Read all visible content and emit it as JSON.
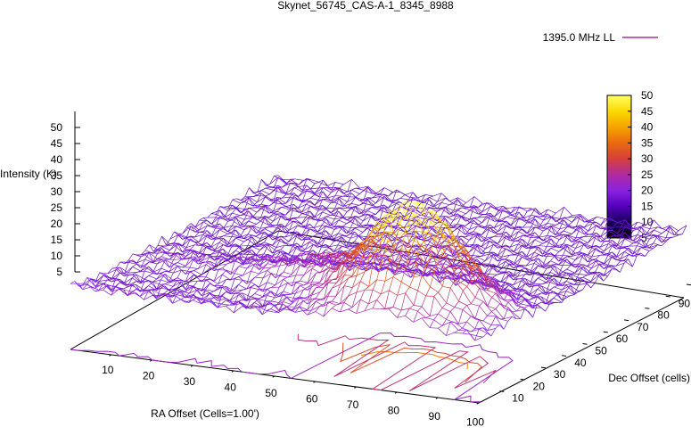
{
  "chart_data": {
    "type": "surface",
    "title": "Skynet_56745_CAS-A-1_8345_8988",
    "legend": {
      "label": "1395.0 MHz LL",
      "position": "top-right"
    },
    "zlabel": "Intensity (K)",
    "xlabel": "RA Offset (Cells=1.00')",
    "ylabel": "Dec Offset (cells)",
    "x_ticks": [
      "10",
      "20",
      "30",
      "40",
      "50",
      "60",
      "70",
      "80",
      "90",
      "100"
    ],
    "y_ticks": [
      "10",
      "20",
      "30",
      "40",
      "50",
      "60",
      "70",
      "80",
      "90",
      "100"
    ],
    "z_ticks": [
      "5",
      "10",
      "15",
      "20",
      "25",
      "30",
      "35",
      "40",
      "45",
      "50"
    ],
    "colorbar_ticks": [
      "50",
      "45",
      "40",
      "35",
      "30",
      "25",
      "20",
      "15",
      "10",
      "5"
    ],
    "zlim": [
      0,
      50
    ],
    "colorbar_range": [
      5,
      50
    ],
    "colormap": [
      "#000000",
      "#1a0060",
      "#5500bb",
      "#8a22e0",
      "#b12aa0",
      "#d6403a",
      "#ea6a10",
      "#f6a300",
      "#fbd900",
      "#ffff66"
    ],
    "peak": {
      "x": 75,
      "y": 18,
      "intensity": 50
    },
    "ridge_baseline_intensity": 20,
    "plateau_intensity": 17
  }
}
